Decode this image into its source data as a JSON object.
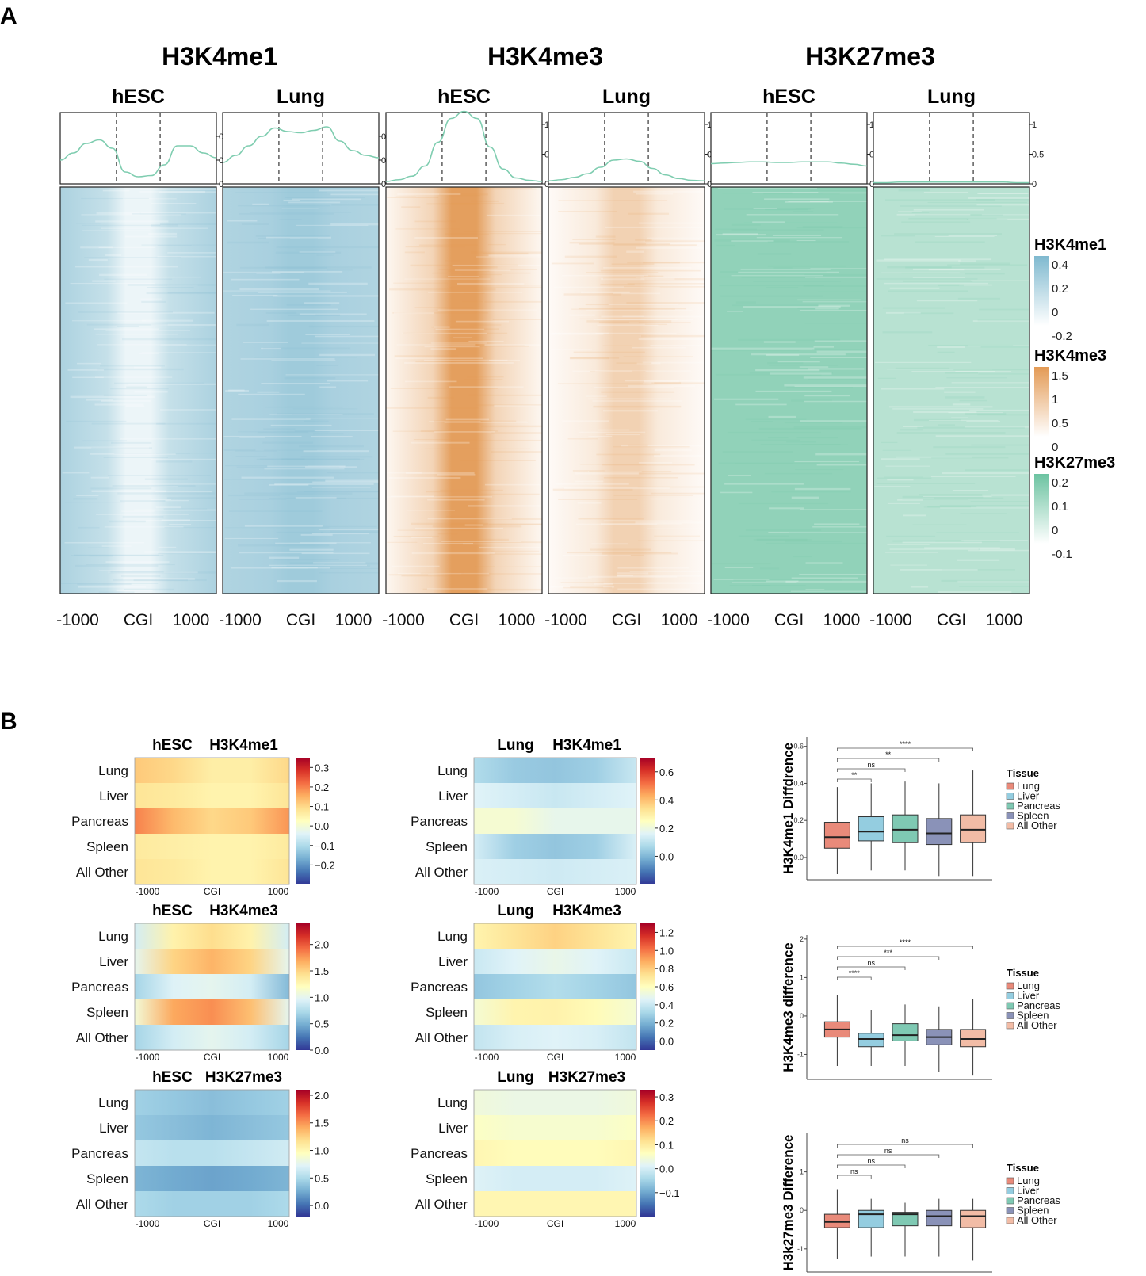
{
  "panel_labels": {
    "a": "A",
    "b": "B"
  },
  "colors": {
    "H3K4me1": "#7fb9cf",
    "H3K4me3": "#e39a55",
    "H3K27me3": "#6cc3a1",
    "profile_line": "#7fcdb0",
    "box_fill": [
      "#e98a7a",
      "#94cde0",
      "#7fc9b3",
      "#8a92b8",
      "#f2bca6"
    ]
  },
  "chart_data": [
    {
      "type": "heatmap",
      "panel": "A",
      "marks": [
        {
          "name": "H3K4me1",
          "colorbar": {
            "title": "H3K4me1",
            "ticks": [
              "0.4",
              "0.2",
              "0",
              "-0.2"
            ],
            "min": -0.2,
            "max": 0.4
          },
          "profile_ylim": [
            0,
            0.3
          ],
          "profile_yticks": [
            "0.2",
            "0.1",
            "0"
          ],
          "samples": [
            {
              "name": "hESC",
              "profile": [
                0.1,
                0.13,
                0.17,
                0.185,
                0.15,
                0.05,
                0.03,
                0.035,
                0.08,
                0.16,
                0.16,
                0.13,
                0.11
              ],
              "center_level": 0.15,
              "flank_level": 0.65
            },
            {
              "name": "Lung",
              "profile": [
                0.09,
                0.12,
                0.16,
                0.2,
                0.235,
                0.22,
                0.215,
                0.225,
                0.24,
                0.18,
                0.14,
                0.12,
                0.11
              ],
              "center_level": 0.75,
              "flank_level": 0.62
            }
          ]
        },
        {
          "name": "H3K4me3",
          "colorbar": {
            "title": "H3K4me3",
            "ticks": [
              "1.5",
              "1",
              "0.5",
              "0"
            ],
            "min": 0,
            "max": 1.5
          },
          "profile_ylim": [
            0,
            1.2
          ],
          "profile_yticks": [
            "1",
            "0.5",
            "0"
          ],
          "samples": [
            {
              "name": "hESC",
              "profile": [
                0.04,
                0.07,
                0.13,
                0.3,
                0.7,
                1.1,
                1.22,
                1.1,
                0.62,
                0.25,
                0.1,
                0.06,
                0.04
              ],
              "center_level": 0.95,
              "flank_level": 0.08
            },
            {
              "name": "Lung",
              "profile": [
                0.05,
                0.07,
                0.11,
                0.17,
                0.28,
                0.4,
                0.42,
                0.38,
                0.26,
                0.15,
                0.09,
                0.06,
                0.05
              ],
              "center_level": 0.45,
              "flank_level": 0.05
            }
          ]
        },
        {
          "name": "H3K27me3",
          "colorbar": {
            "title": "H3K27me3",
            "ticks": [
              "0.2",
              "0.1",
              "0",
              "-0.1"
            ],
            "min": -0.1,
            "max": 0.2
          },
          "profile_ylim": [
            0,
            1.2
          ],
          "profile_yticks": [
            "1",
            "0.5",
            "0"
          ],
          "samples": [
            {
              "name": "hESC",
              "profile": [
                0.34,
                0.35,
                0.36,
                0.37,
                0.37,
                0.36,
                0.36,
                0.37,
                0.37,
                0.37,
                0.35,
                0.33,
                0.3
              ],
              "center_level": 0.75,
              "flank_level": 0.75
            },
            {
              "name": "Lung",
              "profile": [
                0.02,
                0.02,
                0.03,
                0.03,
                0.03,
                0.03,
                0.03,
                0.03,
                0.03,
                0.03,
                0.03,
                0.02,
                0.02
              ],
              "center_level": 0.48,
              "flank_level": 0.48
            }
          ]
        }
      ],
      "x_ticks": [
        "-1000",
        "CGI",
        "1000"
      ]
    },
    {
      "type": "heatmap",
      "panel": "B",
      "row_labels": [
        "Lung",
        "Liver",
        "Pancreas",
        "Spleen",
        "All Other"
      ],
      "x_ticks": [
        "-1000",
        "CGI",
        "1000"
      ],
      "grid": [
        {
          "sample": "hESC",
          "mark": "H3K4me1",
          "colorbar": {
            "min": -0.3,
            "max": 0.35,
            "ticks": [
              "0.3",
              "0.2",
              "0.1",
              "0.0",
              "−0.1",
              "−0.2"
            ]
          },
          "values": [
            [
              0.12,
              0.1,
              0.06,
              0.06,
              0.1
            ],
            [
              0.08,
              0.07,
              0.05,
              0.05,
              0.08
            ],
            [
              0.2,
              0.14,
              0.1,
              0.12,
              0.18
            ],
            [
              0.07,
              0.06,
              0.05,
              0.05,
              0.07
            ],
            [
              0.08,
              0.07,
              0.05,
              0.05,
              0.08
            ]
          ]
        },
        {
          "sample": "Lung",
          "mark": "H3K4me1",
          "colorbar": {
            "min": -0.2,
            "max": 0.7,
            "ticks": [
              "0.6",
              "0.4",
              "0.2",
              "0.0"
            ]
          },
          "values": [
            [
              0.08,
              0.04,
              0.03,
              0.05,
              0.12
            ],
            [
              0.16,
              0.14,
              0.12,
              0.14,
              0.16
            ],
            [
              0.22,
              0.22,
              0.18,
              0.18,
              0.18
            ],
            [
              0.14,
              0.05,
              0.03,
              0.05,
              0.15
            ],
            [
              0.15,
              0.14,
              0.13,
              0.14,
              0.15
            ]
          ]
        },
        {
          "sample": "hESC",
          "mark": "H3K4me3",
          "colorbar": {
            "min": 0,
            "max": 2.4,
            "ticks": [
              "2.0",
              "1.5",
              "1.0",
              "0.5",
              "0.0"
            ]
          },
          "values": [
            [
              0.9,
              1.3,
              1.45,
              1.3,
              0.9
            ],
            [
              1.0,
              1.5,
              1.65,
              1.5,
              1.0
            ],
            [
              0.7,
              0.95,
              1.0,
              0.9,
              0.55
            ],
            [
              1.1,
              1.7,
              1.8,
              1.6,
              1.0
            ],
            [
              0.7,
              0.9,
              1.0,
              0.9,
              0.7
            ]
          ]
        },
        {
          "sample": "Lung",
          "mark": "H3K4me3",
          "colorbar": {
            "min": -0.1,
            "max": 1.3,
            "ticks": [
              "1.2",
              "1.0",
              "0.8",
              "0.6",
              "0.4",
              "0.2",
              "0.0"
            ]
          },
          "values": [
            [
              0.65,
              0.72,
              0.78,
              0.72,
              0.65
            ],
            [
              0.4,
              0.46,
              0.5,
              0.46,
              0.4
            ],
            [
              0.26,
              0.3,
              0.34,
              0.3,
              0.26
            ],
            [
              0.55,
              0.65,
              0.66,
              0.62,
              0.55
            ],
            [
              0.38,
              0.44,
              0.46,
              0.44,
              0.38
            ]
          ]
        },
        {
          "sample": "hESC",
          "mark": "H3K27me3",
          "colorbar": {
            "min": -0.2,
            "max": 2.1,
            "ticks": [
              "2.0",
              "1.5",
              "1.0",
              "0.5",
              "0.0"
            ]
          },
          "values": [
            [
              0.45,
              0.4,
              0.35,
              0.4,
              0.45
            ],
            [
              0.4,
              0.35,
              0.3,
              0.35,
              0.4
            ],
            [
              0.6,
              0.55,
              0.55,
              0.6,
              0.65
            ],
            [
              0.3,
              0.25,
              0.22,
              0.25,
              0.3
            ],
            [
              0.5,
              0.45,
              0.45,
              0.45,
              0.5
            ]
          ]
        },
        {
          "sample": "Lung",
          "mark": "H3K27me3",
          "colorbar": {
            "min": -0.2,
            "max": 0.33,
            "ticks": [
              "0.3",
              "0.2",
              "0.1",
              "0.0",
              "−0.1"
            ]
          },
          "values": [
            [
              0.04,
              0.03,
              0.03,
              0.03,
              0.04
            ],
            [
              0.06,
              0.05,
              0.05,
              0.05,
              0.06
            ],
            [
              0.08,
              0.07,
              0.07,
              0.07,
              0.08
            ],
            [
              0.01,
              0.0,
              0.0,
              0.0,
              0.01
            ],
            [
              0.08,
              0.08,
              0.08,
              0.08,
              0.08
            ]
          ]
        }
      ]
    },
    {
      "type": "box",
      "panel": "B",
      "legend_title": "Tissue",
      "categories": [
        "Lung",
        "Liver",
        "Pancreas",
        "Spleen",
        "All Other"
      ],
      "plots": [
        {
          "ylabel": "H3K4me1 Diffdrence",
          "ylim": [
            -0.12,
            0.65
          ],
          "yticks": [
            0.0,
            0.2,
            0.4,
            0.6
          ],
          "ytick_labels": [
            "0.0",
            "0.2",
            "0.4",
            "0.6"
          ],
          "boxes": [
            {
              "q1": 0.05,
              "median": 0.11,
              "q3": 0.19,
              "low": -0.09,
              "high": 0.38
            },
            {
              "q1": 0.09,
              "median": 0.14,
              "q3": 0.22,
              "low": -0.07,
              "high": 0.4
            },
            {
              "q1": 0.08,
              "median": 0.15,
              "q3": 0.23,
              "low": -0.07,
              "high": 0.41
            },
            {
              "q1": 0.07,
              "median": 0.13,
              "q3": 0.21,
              "low": -0.1,
              "high": 0.4
            },
            {
              "q1": 0.08,
              "median": 0.15,
              "q3": 0.23,
              "low": -0.1,
              "high": 0.47
            }
          ],
          "comparisons": [
            {
              "to": "Liver",
              "label": "**"
            },
            {
              "to": "Pancreas",
              "label": "ns"
            },
            {
              "to": "Spleen",
              "label": "**"
            },
            {
              "to": "All Other",
              "label": "****"
            }
          ]
        },
        {
          "ylabel": "H3K4me3 difference",
          "ylim": [
            -1.65,
            2.1
          ],
          "yticks": [
            -1,
            0,
            1,
            2
          ],
          "ytick_labels": [
            "-1",
            "0",
            "1",
            "2"
          ],
          "boxes": [
            {
              "q1": -0.55,
              "median": -0.35,
              "q3": -0.15,
              "low": -1.3,
              "high": 0.55
            },
            {
              "q1": -0.8,
              "median": -0.6,
              "q3": -0.45,
              "low": -1.3,
              "high": 0.15
            },
            {
              "q1": -0.65,
              "median": -0.5,
              "q3": -0.2,
              "low": -1.3,
              "high": 0.3
            },
            {
              "q1": -0.75,
              "median": -0.55,
              "q3": -0.35,
              "low": -1.45,
              "high": 0.25
            },
            {
              "q1": -0.8,
              "median": -0.6,
              "q3": -0.35,
              "low": -1.55,
              "high": 0.45
            }
          ],
          "comparisons": [
            {
              "to": "Liver",
              "label": "****"
            },
            {
              "to": "Pancreas",
              "label": "ns"
            },
            {
              "to": "Spleen",
              "label": "***"
            },
            {
              "to": "All Other",
              "label": "****"
            }
          ]
        },
        {
          "ylabel": "H3k27me3 Difference",
          "ylim": [
            -1.6,
            2.0
          ],
          "yticks": [
            -1,
            0,
            1
          ],
          "ytick_labels": [
            "-1",
            "0",
            "1"
          ],
          "boxes": [
            {
              "q1": -0.45,
              "median": -0.3,
              "q3": -0.1,
              "low": -1.25,
              "high": 0.55
            },
            {
              "q1": -0.45,
              "median": -0.1,
              "q3": 0.0,
              "low": -1.2,
              "high": 0.3
            },
            {
              "q1": -0.4,
              "median": -0.1,
              "q3": -0.05,
              "low": -1.2,
              "high": 0.2
            },
            {
              "q1": -0.4,
              "median": -0.15,
              "q3": 0.0,
              "low": -1.2,
              "high": 0.3
            },
            {
              "q1": -0.45,
              "median": -0.15,
              "q3": 0.0,
              "low": -1.3,
              "high": 0.3
            }
          ],
          "comparisons": [
            {
              "to": "Liver",
              "label": "ns"
            },
            {
              "to": "Pancreas",
              "label": "ns"
            },
            {
              "to": "Spleen",
              "label": "ns"
            },
            {
              "to": "All Other",
              "label": "ns"
            }
          ]
        }
      ]
    }
  ]
}
